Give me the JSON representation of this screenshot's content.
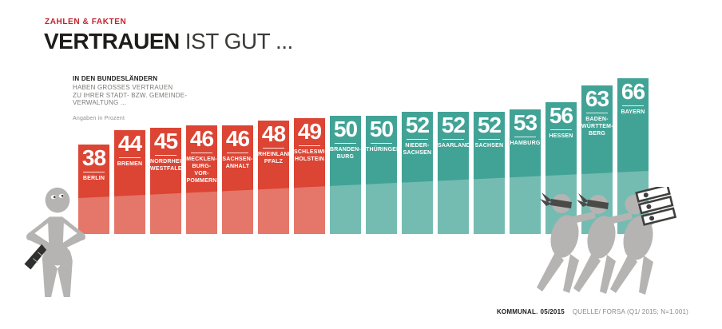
{
  "header": {
    "kicker": "ZAHLEN & FAKTEN",
    "title_strong": "VERTRAUEN",
    "title_light": "IST GUT ..."
  },
  "intro": {
    "lead": "IN DEN BUNDESLÄNDERN",
    "lines": [
      "HABEN GROSSES VERTRAUEN",
      "ZU IHRER STADT- BZW. GEMEINDE-",
      "VERWALTUNG ..."
    ],
    "note": "Angaben in Prozent"
  },
  "chart_data": {
    "type": "bar",
    "title": "Vertrauen ist gut ...",
    "subtitle": "Großes Vertrauen zur Stadt- bzw. Gemeindeverwaltung je Bundesland",
    "unit": "Prozent",
    "categories": [
      "BERLIN",
      "BREMEN",
      "NORDRHEIN-\nWESTFALEN",
      "MECKLEN-\nBURG-VOR-\nPOMMERN",
      "SACHSEN-\nANHALT",
      "RHEINLAND-\nPFALZ",
      "SCHLESWIG-\nHOLSTEIN",
      "BRANDEN-\nBURG",
      "THÜRINGEN",
      "NIEDER-\nSACHSEN",
      "SAARLAND",
      "SACHSEN",
      "HAMBURG",
      "HESSEN",
      "BADEN-\nWÜRTTEM-\nBERG",
      "BAYERN"
    ],
    "values": [
      38,
      44,
      45,
      46,
      46,
      48,
      49,
      50,
      50,
      52,
      52,
      52,
      53,
      56,
      63,
      66
    ],
    "color_threshold": 50,
    "colors": {
      "low": "#dc4433",
      "high": "#41a396"
    },
    "ylim": [
      0,
      66
    ],
    "grid": false,
    "legend": "none"
  },
  "figures": {
    "left": "angry-citizen-figure",
    "right": "blindfolded-figures-carrying-files"
  },
  "footer": {
    "brand": "KOMMUNAL",
    "brand_dot": ".",
    "issue": "05/2015",
    "source": "QUELLE/ FORSA (Q1/ 2015; N=1.001)"
  }
}
